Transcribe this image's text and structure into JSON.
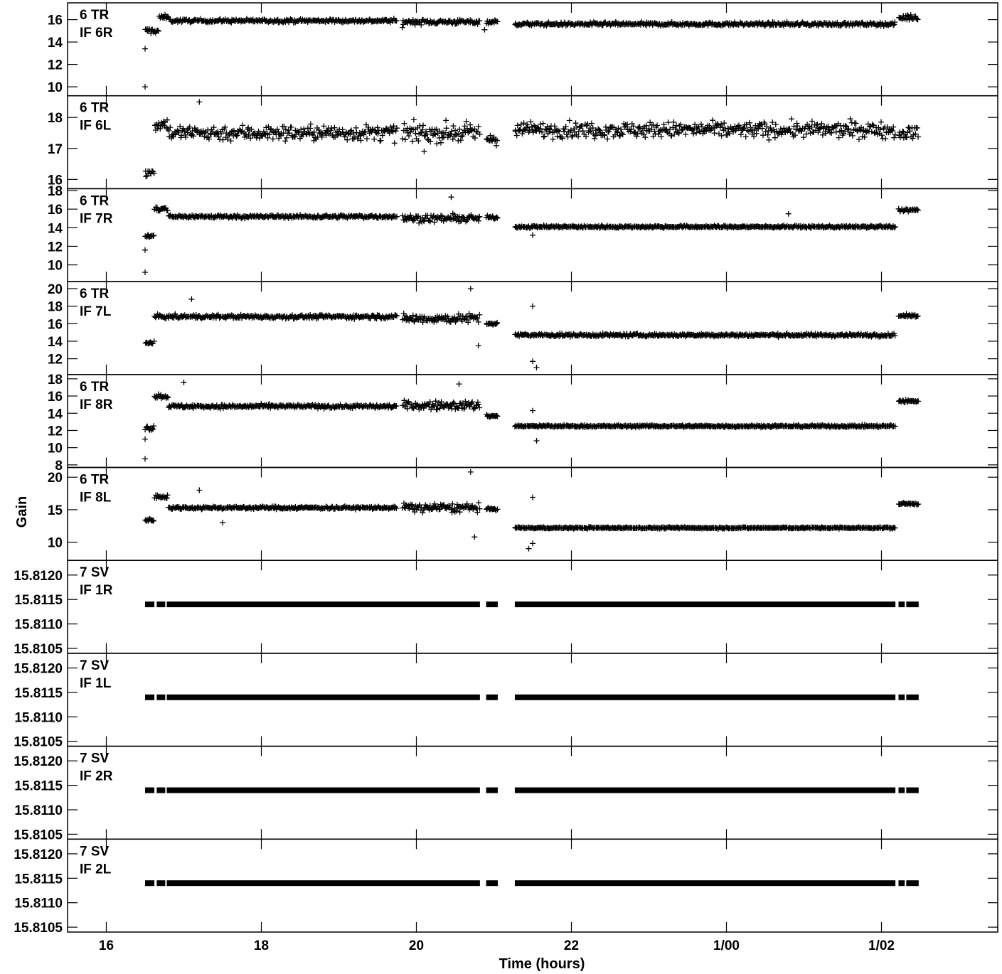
{
  "chart_data": {
    "type": "scatter",
    "title": "",
    "xlabel": "Time (hours)",
    "ylabel": "Gain",
    "x_range_hours": [
      15.5,
      27.5
    ],
    "x_ticks": [
      {
        "value": 16,
        "label": "16"
      },
      {
        "value": 18,
        "label": "18"
      },
      {
        "value": 20,
        "label": "20"
      },
      {
        "value": 22,
        "label": "22"
      },
      {
        "value": 24,
        "label": "1/00"
      },
      {
        "value": 26,
        "label": "1/02"
      }
    ],
    "marker": "+",
    "color": "#000000",
    "panels": [
      {
        "label_line1": "6 TR",
        "label_line2": "IF 6R",
        "ylim": [
          9.2,
          17.5
        ],
        "y_ticks": [
          {
            "value": 10,
            "label": "10"
          },
          {
            "value": 12,
            "label": "12"
          },
          {
            "value": 14,
            "label": "14"
          },
          {
            "value": 16,
            "label": "16"
          }
        ],
        "segments": [
          {
            "start": 16.5,
            "end": 16.68,
            "mean": 15.0,
            "spread": 0.3
          },
          {
            "start": 16.68,
            "end": 16.82,
            "mean": 16.2,
            "spread": 0.25
          },
          {
            "start": 16.82,
            "end": 19.75,
            "mean": 15.9,
            "spread": 0.18
          },
          {
            "start": 19.82,
            "end": 20.82,
            "mean": 15.8,
            "spread": 0.25
          },
          {
            "start": 20.9,
            "end": 21.05,
            "mean": 15.8,
            "spread": 0.2
          },
          {
            "start": 21.27,
            "end": 26.18,
            "mean": 15.6,
            "spread": 0.18
          },
          {
            "start": 26.22,
            "end": 26.48,
            "mean": 16.2,
            "spread": 0.3
          }
        ],
        "outliers": [
          [
            16.5,
            13.4
          ],
          [
            16.5,
            10.0
          ],
          [
            20.88,
            15.1
          ],
          [
            19.82,
            15.3
          ]
        ]
      },
      {
        "label_line1": "6 TR",
        "label_line2": "IF 6L",
        "ylim": [
          15.7,
          18.7
        ],
        "y_ticks": [
          {
            "value": 16,
            "label": "16"
          },
          {
            "value": 17,
            "label": "17"
          },
          {
            "value": 18,
            "label": "18"
          }
        ],
        "segments": [
          {
            "start": 16.5,
            "end": 16.62,
            "mean": 16.2,
            "spread": 0.25
          },
          {
            "start": 16.62,
            "end": 16.8,
            "mean": 17.8,
            "spread": 0.25
          },
          {
            "start": 16.8,
            "end": 19.75,
            "mean": 17.5,
            "spread": 0.3
          },
          {
            "start": 19.82,
            "end": 20.82,
            "mean": 17.5,
            "spread": 0.35
          },
          {
            "start": 20.9,
            "end": 21.05,
            "mean": 17.3,
            "spread": 0.2
          },
          {
            "start": 21.27,
            "end": 26.18,
            "mean": 17.6,
            "spread": 0.3
          },
          {
            "start": 26.22,
            "end": 26.48,
            "mean": 17.5,
            "spread": 0.25
          }
        ],
        "outliers": [
          [
            17.2,
            18.5
          ],
          [
            20.1,
            16.9
          ]
        ]
      },
      {
        "label_line1": "6 TR",
        "label_line2": "IF 7R",
        "ylim": [
          8.2,
          18.2
        ],
        "y_ticks": [
          {
            "value": 10,
            "label": "10"
          },
          {
            "value": 12,
            "label": "12"
          },
          {
            "value": 14,
            "label": "14"
          },
          {
            "value": 16,
            "label": "16"
          },
          {
            "value": 18,
            "label": "18"
          }
        ],
        "segments": [
          {
            "start": 16.5,
            "end": 16.62,
            "mean": 13.1,
            "spread": 0.25
          },
          {
            "start": 16.62,
            "end": 16.8,
            "mean": 16.0,
            "spread": 0.3
          },
          {
            "start": 16.8,
            "end": 19.75,
            "mean": 15.2,
            "spread": 0.2
          },
          {
            "start": 19.82,
            "end": 20.82,
            "mean": 15.0,
            "spread": 0.45
          },
          {
            "start": 20.9,
            "end": 21.05,
            "mean": 15.1,
            "spread": 0.2
          },
          {
            "start": 21.27,
            "end": 26.18,
            "mean": 14.1,
            "spread": 0.15
          },
          {
            "start": 26.22,
            "end": 26.48,
            "mean": 15.9,
            "spread": 0.2
          }
        ],
        "outliers": [
          [
            16.5,
            11.6
          ],
          [
            16.5,
            9.2
          ],
          [
            20.45,
            17.3
          ],
          [
            21.5,
            13.2
          ],
          [
            24.8,
            15.5
          ]
        ]
      },
      {
        "label_line1": "6 TR",
        "label_line2": "IF 7L",
        "ylim": [
          10.2,
          20.8
        ],
        "y_ticks": [
          {
            "value": 12,
            "label": "12"
          },
          {
            "value": 14,
            "label": "14"
          },
          {
            "value": 16,
            "label": "16"
          },
          {
            "value": 18,
            "label": "18"
          },
          {
            "value": 20,
            "label": "20"
          }
        ],
        "segments": [
          {
            "start": 16.5,
            "end": 16.62,
            "mean": 13.8,
            "spread": 0.2
          },
          {
            "start": 16.62,
            "end": 19.75,
            "mean": 16.8,
            "spread": 0.25
          },
          {
            "start": 19.82,
            "end": 20.82,
            "mean": 16.6,
            "spread": 0.6
          },
          {
            "start": 20.9,
            "end": 21.05,
            "mean": 16.0,
            "spread": 0.2
          },
          {
            "start": 21.27,
            "end": 26.18,
            "mean": 14.7,
            "spread": 0.2
          },
          {
            "start": 26.22,
            "end": 26.48,
            "mean": 16.9,
            "spread": 0.2
          }
        ],
        "outliers": [
          [
            21.5,
            18.0
          ],
          [
            21.55,
            11.0
          ],
          [
            21.5,
            11.7
          ],
          [
            20.7,
            20.0
          ],
          [
            20.8,
            13.5
          ],
          [
            17.1,
            18.8
          ]
        ]
      },
      {
        "label_line1": "6 TR",
        "label_line2": "IF 8R",
        "ylim": [
          7.7,
          18.5
        ],
        "y_ticks": [
          {
            "value": 8,
            "label": "8"
          },
          {
            "value": 10,
            "label": "10"
          },
          {
            "value": 12,
            "label": "12"
          },
          {
            "value": 14,
            "label": "14"
          },
          {
            "value": 16,
            "label": "16"
          },
          {
            "value": 18,
            "label": "18"
          }
        ],
        "segments": [
          {
            "start": 16.5,
            "end": 16.62,
            "mean": 12.3,
            "spread": 0.3
          },
          {
            "start": 16.62,
            "end": 16.8,
            "mean": 16.0,
            "spread": 0.35
          },
          {
            "start": 16.8,
            "end": 19.75,
            "mean": 14.8,
            "spread": 0.25
          },
          {
            "start": 19.82,
            "end": 20.82,
            "mean": 14.9,
            "spread": 0.6
          },
          {
            "start": 20.9,
            "end": 21.05,
            "mean": 13.7,
            "spread": 0.2
          },
          {
            "start": 21.27,
            "end": 26.18,
            "mean": 12.5,
            "spread": 0.15
          },
          {
            "start": 26.22,
            "end": 26.48,
            "mean": 15.4,
            "spread": 0.2
          }
        ],
        "outliers": [
          [
            16.5,
            8.7
          ],
          [
            16.5,
            11.0
          ],
          [
            17.0,
            17.6
          ],
          [
            21.5,
            14.3
          ],
          [
            21.55,
            10.8
          ],
          [
            20.55,
            17.4
          ]
        ]
      },
      {
        "label_line1": "6 TR",
        "label_line2": "IF 8L",
        "ylim": [
          7.2,
          21.5
        ],
        "y_ticks": [
          {
            "value": 10,
            "label": "10"
          },
          {
            "value": 15,
            "label": "15"
          },
          {
            "value": 20,
            "label": "20"
          }
        ],
        "segments": [
          {
            "start": 16.5,
            "end": 16.62,
            "mean": 13.4,
            "spread": 0.25
          },
          {
            "start": 16.62,
            "end": 16.8,
            "mean": 17.0,
            "spread": 0.4
          },
          {
            "start": 16.8,
            "end": 19.75,
            "mean": 15.3,
            "spread": 0.25
          },
          {
            "start": 19.82,
            "end": 20.82,
            "mean": 15.3,
            "spread": 0.8
          },
          {
            "start": 20.9,
            "end": 21.05,
            "mean": 15.1,
            "spread": 0.2
          },
          {
            "start": 21.27,
            "end": 26.18,
            "mean": 12.2,
            "spread": 0.15
          },
          {
            "start": 26.22,
            "end": 26.48,
            "mean": 15.9,
            "spread": 0.2
          }
        ],
        "outliers": [
          [
            20.7,
            20.8
          ],
          [
            20.75,
            10.8
          ],
          [
            21.5,
            16.9
          ],
          [
            21.45,
            9.0
          ],
          [
            21.5,
            9.8
          ],
          [
            17.5,
            13.0
          ],
          [
            17.2,
            18.0
          ]
        ]
      },
      {
        "label_line1": "7 SV",
        "label_line2": "IF 1R",
        "ylim": [
          15.8104,
          15.8123
        ],
        "y_ticks": [
          {
            "value": 15.8105,
            "label": "15.8105"
          },
          {
            "value": 15.811,
            "label": "15.8110"
          },
          {
            "value": 15.8115,
            "label": "15.8115"
          },
          {
            "value": 15.812,
            "label": "15.8120"
          }
        ],
        "constant_value": 15.8114,
        "coverage": [
          [
            16.5,
            16.62
          ],
          [
            16.65,
            16.76
          ],
          [
            16.78,
            20.82
          ],
          [
            20.9,
            21.05
          ],
          [
            21.27,
            26.18
          ],
          [
            26.22,
            26.3
          ],
          [
            26.32,
            26.48
          ]
        ]
      },
      {
        "label_line1": "7 SV",
        "label_line2": "IF 1L",
        "ylim": [
          15.8104,
          15.8123
        ],
        "y_ticks": [
          {
            "value": 15.8105,
            "label": "15.8105"
          },
          {
            "value": 15.811,
            "label": "15.8110"
          },
          {
            "value": 15.8115,
            "label": "15.8115"
          },
          {
            "value": 15.812,
            "label": "15.8120"
          }
        ],
        "constant_value": 15.8114,
        "coverage": [
          [
            16.5,
            16.62
          ],
          [
            16.65,
            16.76
          ],
          [
            16.78,
            20.82
          ],
          [
            20.9,
            21.05
          ],
          [
            21.27,
            26.18
          ],
          [
            26.22,
            26.3
          ],
          [
            26.32,
            26.48
          ]
        ]
      },
      {
        "label_line1": "7 SV",
        "label_line2": "IF 2R",
        "ylim": [
          15.8104,
          15.8123
        ],
        "y_ticks": [
          {
            "value": 15.8105,
            "label": "15.8105"
          },
          {
            "value": 15.811,
            "label": "15.8110"
          },
          {
            "value": 15.8115,
            "label": "15.8115"
          },
          {
            "value": 15.812,
            "label": "15.8120"
          }
        ],
        "constant_value": 15.8114,
        "coverage": [
          [
            16.5,
            16.62
          ],
          [
            16.65,
            16.76
          ],
          [
            16.78,
            20.82
          ],
          [
            20.9,
            21.05
          ],
          [
            21.27,
            26.18
          ],
          [
            26.22,
            26.3
          ],
          [
            26.32,
            26.48
          ]
        ]
      },
      {
        "label_line1": "7 SV",
        "label_line2": "IF 2L",
        "ylim": [
          15.8104,
          15.8123
        ],
        "y_ticks": [
          {
            "value": 15.8105,
            "label": "15.8105"
          },
          {
            "value": 15.811,
            "label": "15.8110"
          },
          {
            "value": 15.8115,
            "label": "15.8115"
          },
          {
            "value": 15.812,
            "label": "15.8120"
          }
        ],
        "constant_value": 15.8114,
        "coverage": [
          [
            16.5,
            16.62
          ],
          [
            16.65,
            16.76
          ],
          [
            16.78,
            20.82
          ],
          [
            20.9,
            21.05
          ],
          [
            21.27,
            26.18
          ],
          [
            26.22,
            26.3
          ],
          [
            26.32,
            26.48
          ]
        ]
      }
    ]
  }
}
